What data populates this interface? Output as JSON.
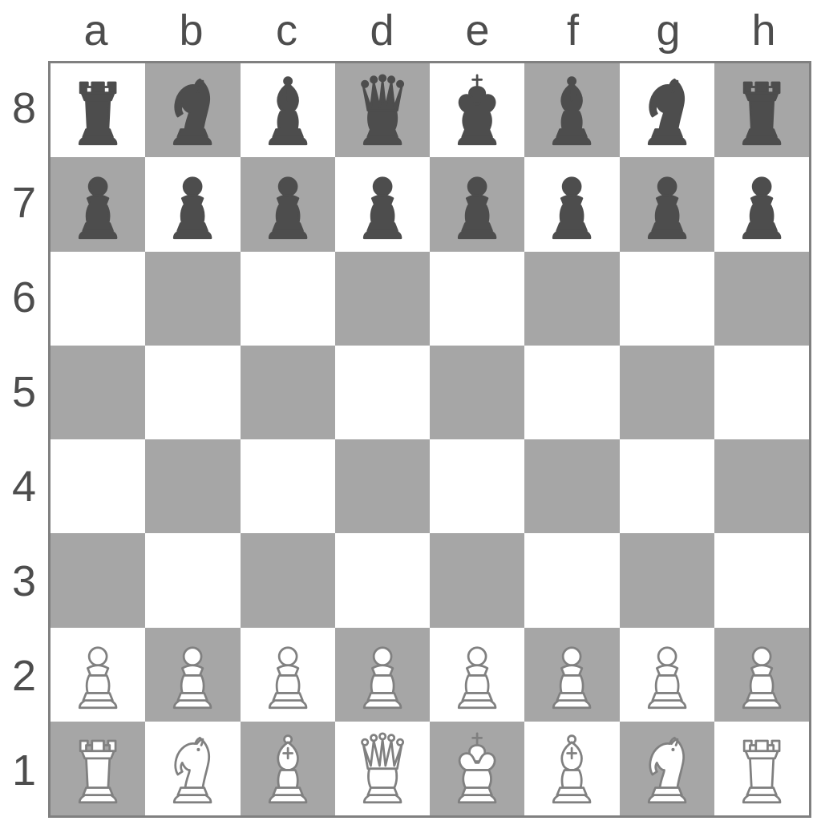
{
  "board": {
    "type": "chessboard",
    "size": 8,
    "files": [
      "a",
      "b",
      "c",
      "d",
      "e",
      "f",
      "g",
      "h"
    ],
    "ranks": [
      "8",
      "7",
      "6",
      "5",
      "4",
      "3",
      "2",
      "1"
    ],
    "colors": {
      "light_square": "#ffffff",
      "dark_square": "#a6a6a6",
      "border": "#808080",
      "label_text": "#4d4d4d",
      "black_piece_fill": "#4d4d4d",
      "black_piece_stroke": "#4d4d4d",
      "white_piece_fill": "#ffffff",
      "white_piece_stroke": "#808080"
    },
    "label_fontsize": 54,
    "piece_stroke_width": 3,
    "position": {
      "a8": "bR",
      "b8": "bN",
      "c8": "bB",
      "d8": "bQ",
      "e8": "bK",
      "f8": "bB",
      "g8": "bN",
      "h8": "bR",
      "a7": "bP",
      "b7": "bP",
      "c7": "bP",
      "d7": "bP",
      "e7": "bP",
      "f7": "bP",
      "g7": "bP",
      "h7": "bP",
      "a2": "wP",
      "b2": "wP",
      "c2": "wP",
      "d2": "wP",
      "e2": "wP",
      "f2": "wP",
      "g2": "wP",
      "h2": "wP",
      "a1": "wR",
      "b1": "wN",
      "c1": "wB",
      "d1": "wQ",
      "e1": "wK",
      "f1": "wB",
      "g1": "wN",
      "h1": "wR"
    }
  }
}
